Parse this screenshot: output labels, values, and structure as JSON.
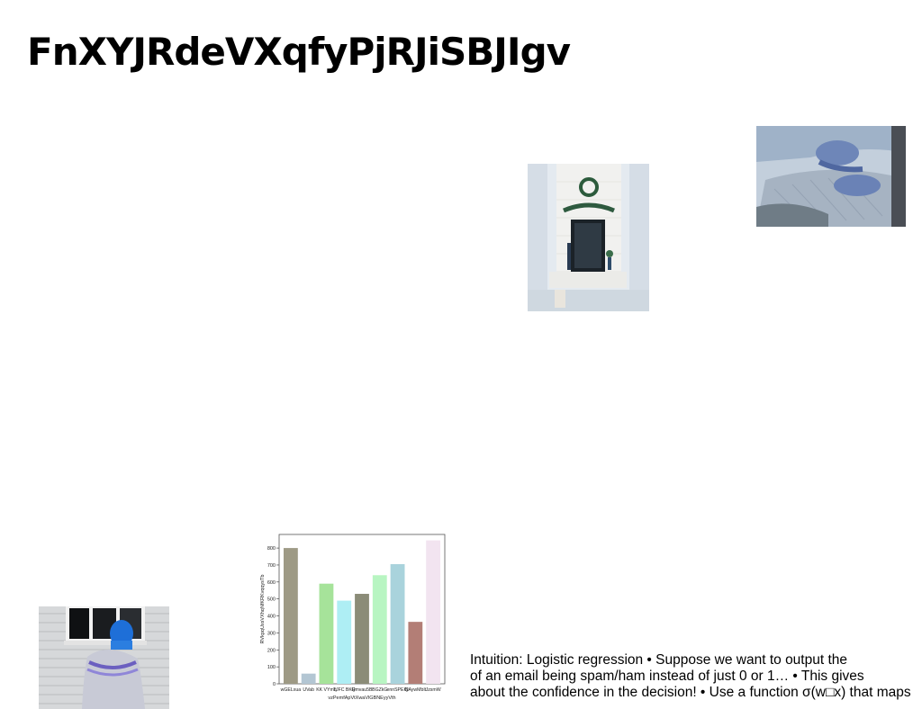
{
  "title": "FnXYJRdeVXqfyPjRJiSBJIgv",
  "images": {
    "fireplace": "fireplace-photo",
    "hands": "hands-photo",
    "window_kid": "child-at-window-photo"
  },
  "text_lines": [
    "Intuition: Logistic regression • Suppose we want to output the",
    "of an email being spam/ham instead of just 0 or 1… • This gives",
    "about the confidence in the decision! • Use a function σ(w□x) that maps"
  ],
  "chart_data": {
    "type": "bar",
    "categories": [
      "wGELxua",
      "UVab",
      "KK VYmq",
      "TJFC BKR",
      "Qmvau5B",
      "BGZkG",
      "ennSPEIN",
      "QAywMbIt",
      "JzsmW"
    ],
    "values": [
      800,
      60,
      590,
      490,
      530,
      640,
      705,
      365,
      845
    ],
    "colors": [
      "#9e9a85",
      "#b3c6d3",
      "#a6e39a",
      "#aeeef4",
      "#8b8c78",
      "#b8f5c2",
      "#a9d3dc",
      "#b37e76",
      "#f2e4f0"
    ],
    "xlabel": "vzPemfApVtXwaVlGBNEyyVth",
    "ylabel": "RVkpqUxsVXhqNfKRKvqqysTb",
    "ylim": [
      0,
      880
    ],
    "yticks": [
      0,
      100,
      200,
      300,
      400,
      500,
      600,
      700,
      800
    ]
  }
}
